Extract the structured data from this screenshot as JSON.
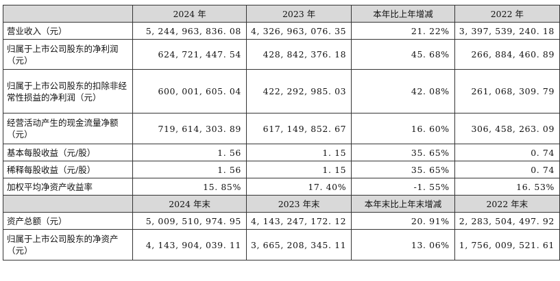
{
  "header1": [
    "",
    "2024 年",
    "2023 年",
    "本年比上年增减",
    "2022 年"
  ],
  "rows1": [
    {
      "label": "营业收入（元）",
      "v2024": "5, 244, 963, 836. 08",
      "v2023": "4, 326, 963, 076. 35",
      "change": "21. 22%",
      "v2022": "3, 397, 539, 240. 18"
    },
    {
      "label": "归属于上市公司股东的净利润（元）",
      "v2024": "624, 721, 447. 54",
      "v2023": "428, 842, 376. 18",
      "change": "45. 68%",
      "v2022": "266, 884, 460. 89"
    },
    {
      "label": "归属于上市公司股东的扣除非经常性损益的净利润（元）",
      "v2024": "600, 001, 605. 04",
      "v2023": "422, 292, 985. 03",
      "change": "42. 08%",
      "v2022": "261, 068, 309. 79"
    },
    {
      "label": "经营活动产生的现金流量净额（元）",
      "v2024": "719, 614, 303. 89",
      "v2023": "617, 149, 852. 67",
      "change": "16. 60%",
      "v2022": "306, 458, 263. 09"
    },
    {
      "label": "基本每股收益（元/股）",
      "v2024": "1. 56",
      "v2023": "1. 15",
      "change": "35. 65%",
      "v2022": "0. 74"
    },
    {
      "label": "稀释每股收益（元/股）",
      "v2024": "1. 56",
      "v2023": "1. 15",
      "change": "35. 65%",
      "v2022": "0. 74"
    },
    {
      "label": "加权平均净资产收益率",
      "v2024": "15. 85%",
      "v2023": "17. 40%",
      "change": "-1. 55%",
      "v2022": "16. 53%"
    }
  ],
  "header2": [
    "",
    "2024 年末",
    "2023 年末",
    "本年末比上年末增减",
    "2022 年末"
  ],
  "rows2": [
    {
      "label": "资产总额（元）",
      "v2024": "5, 009, 510, 974. 95",
      "v2023": "4, 143, 247, 172. 12",
      "change": "20. 91%",
      "v2022": "2, 283, 504, 497. 92"
    },
    {
      "label": "归属于上市公司股东的净资产（元）",
      "v2024": "4, 143, 904, 039. 11",
      "v2023": "3, 665, 208, 345. 11",
      "change": "13. 06%",
      "v2022": "1, 756, 009, 521. 61"
    }
  ]
}
